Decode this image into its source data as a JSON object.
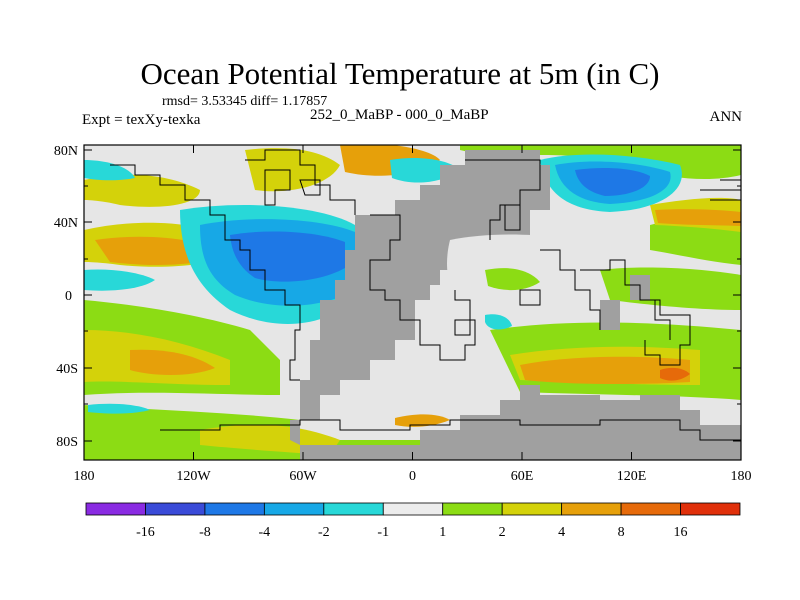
{
  "title": "Ocean Potential Temperature at 5m (in C)",
  "stats_line": "rmsd= 3.53345 diff= 1.17857",
  "experiment_label": "Expt = texXy-texka",
  "comparison_label": "252_0_MaBP - 000_0_MaBP",
  "season_label": "ANN",
  "map": {
    "latitude_ticks": [
      "80N",
      "40N",
      "0",
      "40S",
      "80S"
    ],
    "longitude_ticks": [
      "180",
      "120W",
      "60W",
      "0",
      "60E",
      "120E",
      "180"
    ],
    "land_color": "#a0a0a0",
    "ocean_background_color": "#e6e6e6"
  },
  "colorbar": {
    "labels": [
      "-16",
      "-8",
      "-4",
      "-2",
      "-1",
      "1",
      "2",
      "4",
      "8",
      "16"
    ],
    "colors": [
      "#8a2be2",
      "#3a4bd8",
      "#1e78e6",
      "#17a8e6",
      "#28d8d8",
      "#ececec",
      "#8cdc14",
      "#d4d20a",
      "#e6a00a",
      "#e66a0a",
      "#e0300a"
    ]
  }
}
